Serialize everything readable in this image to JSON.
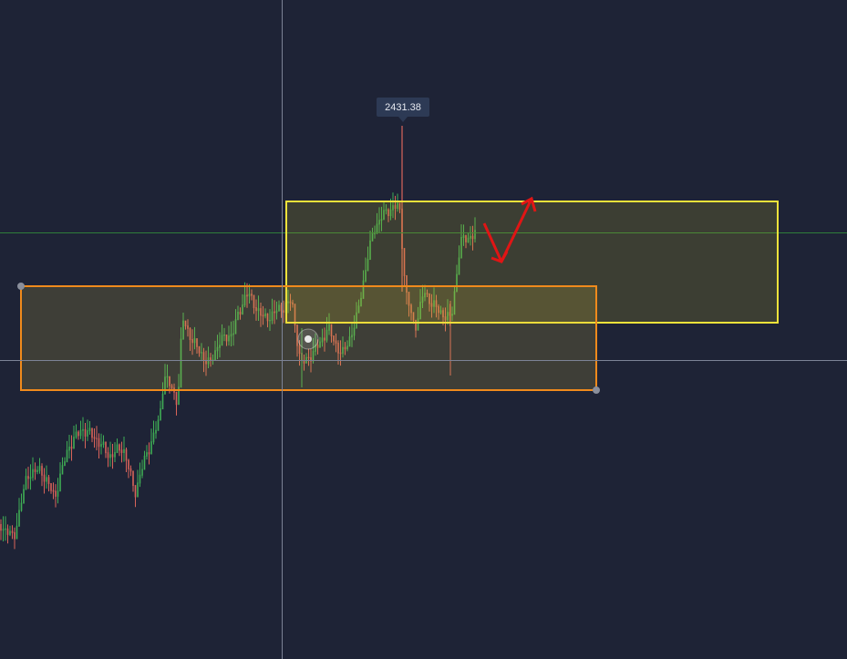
{
  "price_label": "2431.38"
}
